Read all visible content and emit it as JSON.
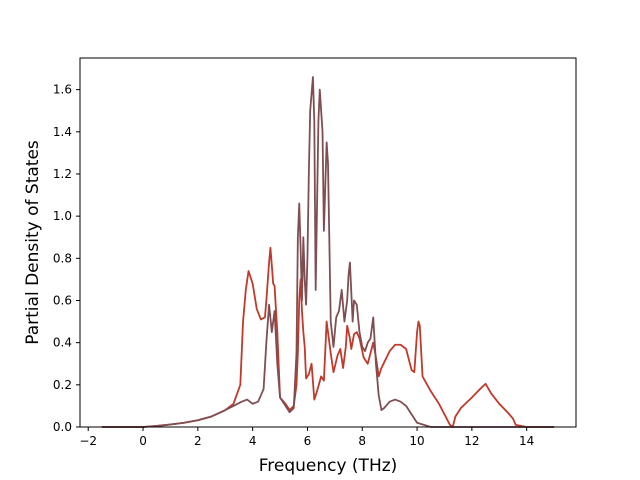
{
  "chart_data": {
    "type": "line",
    "title": "",
    "xlabel": "Frequency (THz)",
    "ylabel": "Partial Density of States",
    "xlim": [
      -2.3,
      15.8
    ],
    "ylim": [
      0.0,
      1.75
    ],
    "xticks": [
      -2,
      0,
      2,
      4,
      6,
      8,
      10,
      12,
      14
    ],
    "xtick_labels": [
      "−2",
      "0",
      "2",
      "4",
      "6",
      "8",
      "10",
      "12",
      "14"
    ],
    "yticks": [
      0.0,
      0.2,
      0.4,
      0.6,
      0.8,
      1.0,
      1.2,
      1.4,
      1.6
    ],
    "ytick_labels": [
      "0.0",
      "0.2",
      "0.4",
      "0.6",
      "0.8",
      "1.0",
      "1.2",
      "1.4",
      "1.6"
    ],
    "grid": false,
    "legend": null,
    "series": [
      {
        "color": "#c0392b",
        "x": [
          -1.5,
          -1.0,
          0.0,
          0.5,
          1.0,
          1.5,
          2.0,
          2.5,
          3.0,
          3.3,
          3.55,
          3.65,
          3.75,
          3.85,
          4.0,
          4.15,
          4.3,
          4.45,
          4.5,
          4.6,
          4.65,
          4.75,
          4.8,
          4.9,
          5.0,
          5.2,
          5.35,
          5.5,
          5.6,
          5.65,
          5.7,
          5.75,
          5.8,
          5.85,
          5.9,
          5.95,
          6.05,
          6.15,
          6.25,
          6.35,
          6.5,
          6.6,
          6.7,
          6.75,
          6.85,
          6.95,
          7.1,
          7.2,
          7.3,
          7.4,
          7.45,
          7.55,
          7.6,
          7.7,
          7.8,
          7.9,
          8.0,
          8.05,
          8.2,
          8.3,
          8.4,
          8.5,
          8.6,
          8.7,
          9.0,
          9.2,
          9.4,
          9.6,
          9.8,
          9.9,
          10.0,
          10.05,
          10.1,
          10.2,
          10.5,
          10.8,
          11.0,
          11.2,
          11.3,
          11.4,
          11.6,
          12.0,
          12.3,
          12.5,
          12.7,
          13.0,
          13.3,
          13.5,
          13.6,
          14.0,
          15.0
        ],
        "y": [
          0.0,
          0.0,
          0.0,
          0.005,
          0.012,
          0.02,
          0.032,
          0.05,
          0.08,
          0.11,
          0.2,
          0.5,
          0.65,
          0.74,
          0.68,
          0.56,
          0.51,
          0.52,
          0.6,
          0.78,
          0.85,
          0.68,
          0.67,
          0.45,
          0.14,
          0.11,
          0.08,
          0.1,
          0.2,
          0.35,
          0.6,
          0.7,
          0.55,
          0.45,
          0.38,
          0.23,
          0.25,
          0.3,
          0.13,
          0.17,
          0.24,
          0.22,
          0.5,
          0.45,
          0.35,
          0.26,
          0.34,
          0.37,
          0.28,
          0.38,
          0.48,
          0.42,
          0.37,
          0.44,
          0.45,
          0.42,
          0.36,
          0.33,
          0.3,
          0.35,
          0.4,
          0.33,
          0.24,
          0.28,
          0.36,
          0.39,
          0.39,
          0.37,
          0.27,
          0.26,
          0.45,
          0.5,
          0.48,
          0.24,
          0.17,
          0.11,
          0.06,
          0.01,
          0.0,
          0.05,
          0.09,
          0.14,
          0.18,
          0.205,
          0.16,
          0.11,
          0.07,
          0.04,
          0.01,
          0.0,
          0.0
        ]
      },
      {
        "color": "#7f4e52",
        "x": [
          -1.5,
          -1.0,
          0.0,
          0.5,
          1.0,
          1.5,
          2.0,
          2.5,
          3.0,
          3.3,
          3.6,
          3.8,
          4.0,
          4.2,
          4.4,
          4.5,
          4.6,
          4.7,
          4.8,
          4.9,
          5.0,
          5.2,
          5.35,
          5.5,
          5.6,
          5.65,
          5.7,
          5.75,
          5.8,
          5.85,
          5.9,
          5.95,
          6.0,
          6.05,
          6.1,
          6.2,
          6.25,
          6.3,
          6.4,
          6.45,
          6.55,
          6.6,
          6.7,
          6.75,
          6.85,
          6.95,
          7.05,
          7.15,
          7.25,
          7.35,
          7.45,
          7.5,
          7.55,
          7.65,
          7.7,
          7.8,
          7.9,
          8.0,
          8.1,
          8.2,
          8.3,
          8.4,
          8.5,
          8.6,
          8.7,
          8.8,
          9.0,
          9.2,
          9.4,
          9.6,
          9.8,
          10.0,
          10.5,
          11.0,
          11.2,
          11.3,
          11.4,
          11.6,
          12.0,
          12.3,
          12.5,
          12.7,
          13.0,
          13.3,
          13.5,
          13.6,
          14.0,
          15.0
        ],
        "y": [
          0.0,
          0.0,
          0.0,
          0.005,
          0.012,
          0.02,
          0.032,
          0.05,
          0.08,
          0.1,
          0.12,
          0.13,
          0.11,
          0.12,
          0.18,
          0.4,
          0.58,
          0.45,
          0.55,
          0.3,
          0.14,
          0.1,
          0.07,
          0.09,
          0.35,
          0.9,
          1.06,
          0.85,
          0.6,
          0.9,
          0.7,
          0.58,
          0.8,
          1.2,
          1.5,
          1.66,
          1.45,
          0.65,
          1.45,
          1.6,
          1.4,
          0.93,
          1.35,
          1.25,
          0.5,
          0.38,
          0.52,
          0.55,
          0.65,
          0.5,
          0.6,
          0.72,
          0.78,
          0.5,
          0.6,
          0.58,
          0.45,
          0.38,
          0.36,
          0.4,
          0.42,
          0.52,
          0.3,
          0.15,
          0.08,
          0.09,
          0.12,
          0.13,
          0.12,
          0.1,
          0.06,
          0.02,
          0.0,
          0.0,
          0.0,
          0.0,
          0.0,
          0.0,
          0.0,
          0.0,
          0.0,
          0.0,
          0.0,
          0.0,
          0.0,
          0.0,
          0.0,
          0.0
        ]
      }
    ]
  }
}
